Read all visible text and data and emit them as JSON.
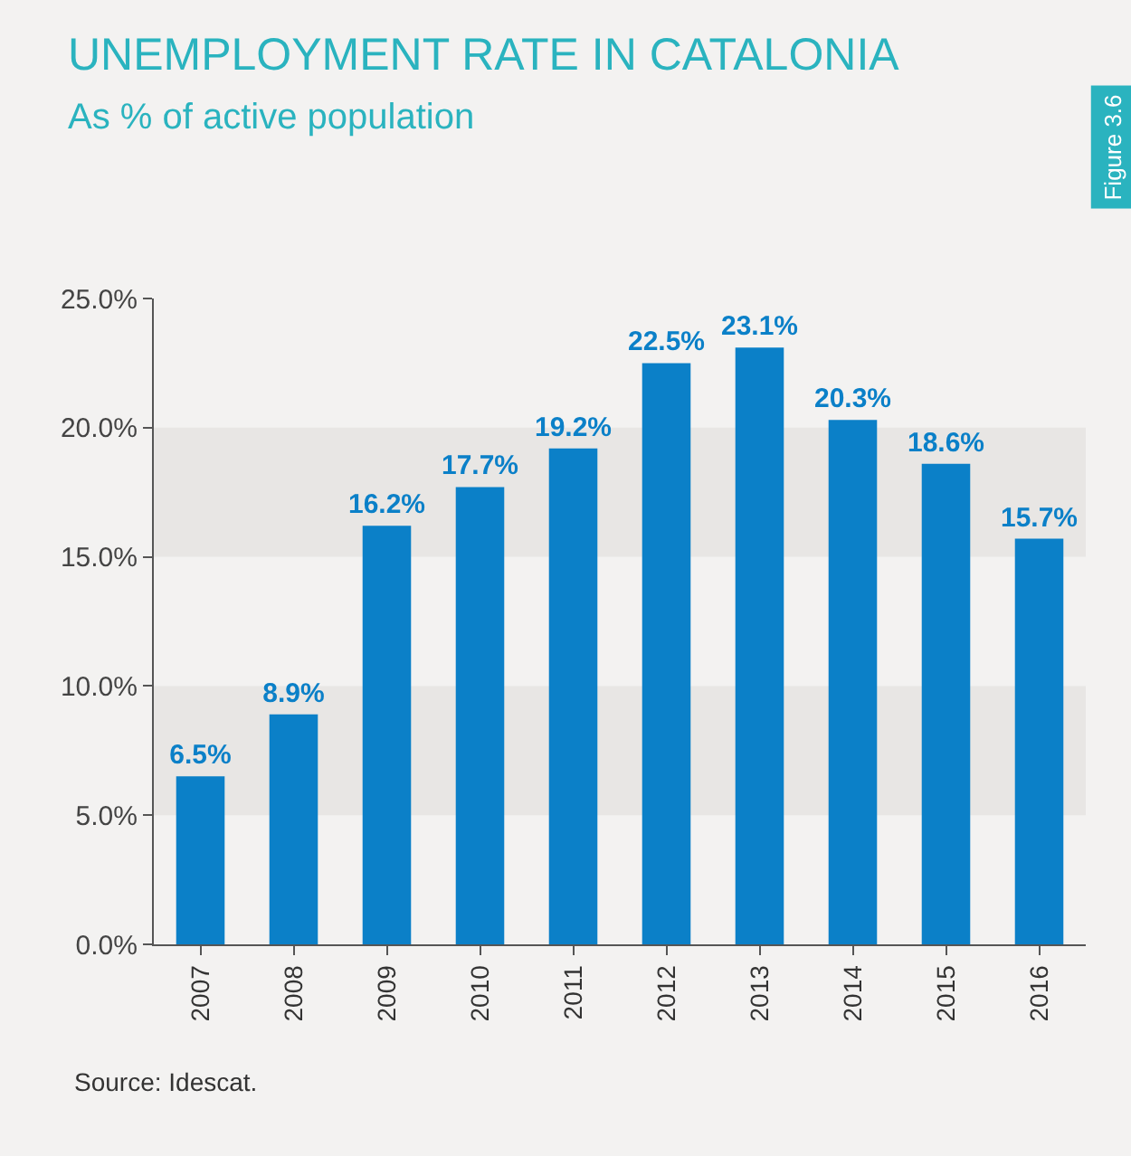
{
  "chart_data": {
    "type": "bar",
    "title": "UNEMPLOYMENT RATE IN CATALONIA",
    "subtitle": "As % of active population",
    "categories": [
      "2007",
      "2008",
      "2009",
      "2010",
      "2011",
      "2012",
      "2013",
      "2014",
      "2015",
      "2016"
    ],
    "values": [
      6.5,
      8.9,
      16.2,
      17.7,
      19.2,
      22.5,
      23.1,
      20.3,
      18.6,
      15.7
    ],
    "value_labels": [
      "6.5%",
      "8.9%",
      "16.2%",
      "17.7%",
      "19.2%",
      "22.5%",
      "23.1%",
      "20.3%",
      "18.6%",
      "15.7%"
    ],
    "color": "#0b80c8",
    "ylim": [
      0,
      25
    ],
    "yticks": [
      {
        "value": 0,
        "label": "0.0%"
      },
      {
        "value": 5,
        "label": "5.0%"
      },
      {
        "value": 10,
        "label": "10.0%"
      },
      {
        "value": 15,
        "label": "15.0%"
      },
      {
        "value": 20,
        "label": "20.0%"
      },
      {
        "value": 25,
        "label": "25.0%"
      }
    ],
    "bands": [
      {
        "axis": "y",
        "from": 5,
        "to": 10,
        "color": "#e8e6e4"
      },
      {
        "axis": "y",
        "from": 15,
        "to": 20,
        "color": "#e8e6e4"
      }
    ],
    "grid": false,
    "legend": false,
    "annotations": [
      "Figure 3.6",
      "Source: Idescat."
    ]
  }
}
